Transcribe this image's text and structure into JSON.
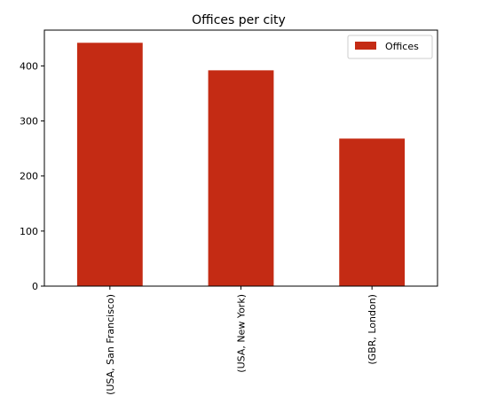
{
  "chart_data": {
    "type": "bar",
    "title": "Offices per city",
    "xlabel": "",
    "ylabel": "",
    "categories": [
      "(USA, San Francisco)",
      "(USA, New York)",
      "(GBR, London)"
    ],
    "series": [
      {
        "name": "Offices",
        "values": [
          442,
          392,
          268
        ],
        "color": "#c42b14"
      }
    ],
    "ylim": [
      0,
      465
    ],
    "yticks": [
      0,
      100,
      200,
      300,
      400
    ],
    "grid": false,
    "legend_position": "top-right"
  }
}
